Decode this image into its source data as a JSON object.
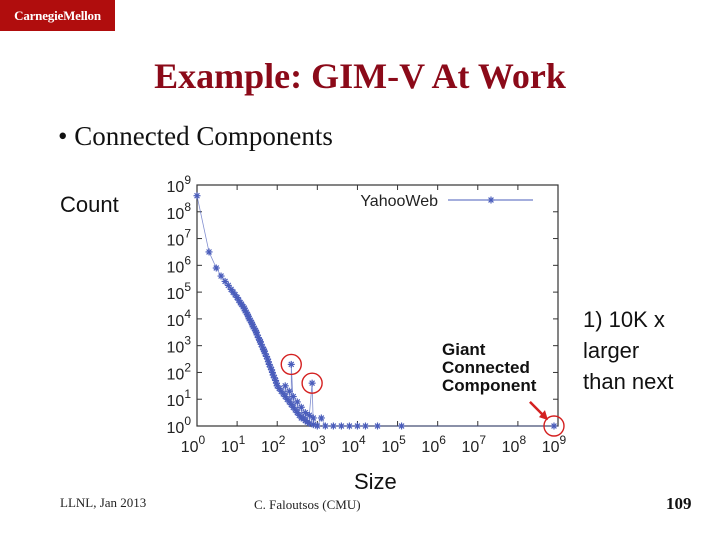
{
  "header": {
    "logo_text": "CarnegieMellon"
  },
  "slide": {
    "title": "Example: GIM-V At Work",
    "bullet": "Connected Components",
    "bullet_marker": "•",
    "count_label": "Count",
    "size_label": "Size",
    "annotation_lines": [
      "1) 10K x",
      "larger",
      "than next"
    ]
  },
  "footer": {
    "left": "LLNL, Jan 2013",
    "center": "C. Faloutsos (CMU)",
    "page": "109"
  },
  "chart_data": {
    "type": "scatter",
    "title": "",
    "xlabel": "Size",
    "ylabel": "Count",
    "x_scale": "log10",
    "y_scale": "log10",
    "x_ticks": [
      0,
      1,
      2,
      3,
      4,
      5,
      6,
      7,
      8,
      9
    ],
    "y_ticks": [
      0,
      1,
      2,
      3,
      4,
      5,
      6,
      7,
      8,
      9
    ],
    "xlim_exp": [
      0,
      9
    ],
    "ylim_exp": [
      0,
      9
    ],
    "legend": {
      "label": "YahooWeb",
      "placement": "top-right"
    },
    "series_color": "#4a5dbb",
    "series": [
      {
        "name": "YahooWeb",
        "points_log10": [
          [
            0,
            8.6
          ],
          [
            0.3,
            6.5
          ],
          [
            0.48,
            5.9
          ],
          [
            0.6,
            5.6
          ],
          [
            0.7,
            5.4
          ],
          [
            0.78,
            5.25
          ],
          [
            0.85,
            5.1
          ],
          [
            0.9,
            5.0
          ],
          [
            0.95,
            4.9
          ],
          [
            1.0,
            4.8
          ],
          [
            1.04,
            4.7
          ],
          [
            1.08,
            4.6
          ],
          [
            1.11,
            4.55
          ],
          [
            1.15,
            4.45
          ],
          [
            1.18,
            4.4
          ],
          [
            1.2,
            4.3
          ],
          [
            1.23,
            4.25
          ],
          [
            1.26,
            4.15
          ],
          [
            1.28,
            4.1
          ],
          [
            1.3,
            4.0
          ],
          [
            1.33,
            3.95
          ],
          [
            1.36,
            3.85
          ],
          [
            1.38,
            3.8
          ],
          [
            1.4,
            3.7
          ],
          [
            1.43,
            3.65
          ],
          [
            1.46,
            3.55
          ],
          [
            1.48,
            3.5
          ],
          [
            1.5,
            3.4
          ],
          [
            1.53,
            3.3
          ],
          [
            1.56,
            3.2
          ],
          [
            1.58,
            3.15
          ],
          [
            1.6,
            3.05
          ],
          [
            1.63,
            2.95
          ],
          [
            1.66,
            2.85
          ],
          [
            1.68,
            2.8
          ],
          [
            1.7,
            2.7
          ],
          [
            1.73,
            2.6
          ],
          [
            1.76,
            2.5
          ],
          [
            1.78,
            2.4
          ],
          [
            1.8,
            2.3
          ],
          [
            1.83,
            2.2
          ],
          [
            1.86,
            2.1
          ],
          [
            1.88,
            2.0
          ],
          [
            1.9,
            1.9
          ],
          [
            1.93,
            1.8
          ],
          [
            1.96,
            1.7
          ],
          [
            1.98,
            1.6
          ],
          [
            2.0,
            1.5
          ],
          [
            2.05,
            1.4
          ],
          [
            2.1,
            1.3
          ],
          [
            2.15,
            1.2
          ],
          [
            2.2,
            1.1
          ],
          [
            2.25,
            1.0
          ],
          [
            2.3,
            0.9
          ],
          [
            2.35,
            0.8
          ],
          [
            2.4,
            0.7
          ],
          [
            2.45,
            0.6
          ],
          [
            2.5,
            0.5
          ],
          [
            2.55,
            0.4
          ],
          [
            2.6,
            0.3
          ],
          [
            2.65,
            0.3
          ],
          [
            2.7,
            0.2
          ],
          [
            2.75,
            0.15
          ],
          [
            2.8,
            0.1
          ],
          [
            2.9,
            0.05
          ],
          [
            2.2,
            1.5
          ],
          [
            2.3,
            1.3
          ],
          [
            2.4,
            1.1
          ],
          [
            2.5,
            0.9
          ],
          [
            2.6,
            0.7
          ],
          [
            2.7,
            0.5
          ],
          [
            2.8,
            0.4
          ],
          [
            2.9,
            0.3
          ],
          [
            2.35,
            2.3
          ],
          [
            2.87,
            1.6
          ],
          [
            3.0,
            0
          ],
          [
            3.1,
            0.3
          ],
          [
            3.2,
            0
          ],
          [
            3.4,
            0
          ],
          [
            3.6,
            0
          ],
          [
            3.8,
            0
          ],
          [
            4.0,
            0
          ],
          [
            4.2,
            0
          ],
          [
            4.5,
            0
          ],
          [
            5.1,
            0
          ],
          [
            8.9,
            0
          ]
        ]
      }
    ],
    "annotation": {
      "lines": [
        "Giant",
        "Connected",
        "Component"
      ],
      "color": "#111111"
    },
    "highlight_color": "#d42020"
  }
}
